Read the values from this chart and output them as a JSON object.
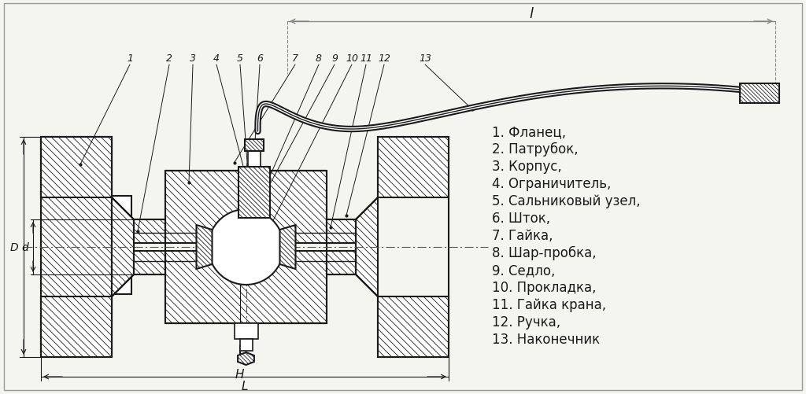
{
  "bg_color": "#f5f5f0",
  "line_color": "#1a1a1a",
  "hatch_color": "#333333",
  "legend_items": [
    "1. Фланец,",
    "2. Патрубок,",
    "3. Корпус,",
    "4. Ограничитель,",
    "5. Сальниковый узел,",
    "6. Шток,",
    "7. Гайка,",
    "8. Шар-пробка,",
    "9. Седло,",
    "10. Прокладка,",
    "11. Гайка крана,",
    "12. Ручка,",
    "13. Наконечник"
  ],
  "dim_labels": [
    "l",
    "L",
    "H",
    "D",
    "d"
  ],
  "part_numbers_left": [
    "1",
    "2",
    "3",
    "4",
    "5",
    "6"
  ],
  "part_numbers_right": [
    "7",
    "8",
    "9",
    "10",
    "11",
    "12",
    "13"
  ]
}
